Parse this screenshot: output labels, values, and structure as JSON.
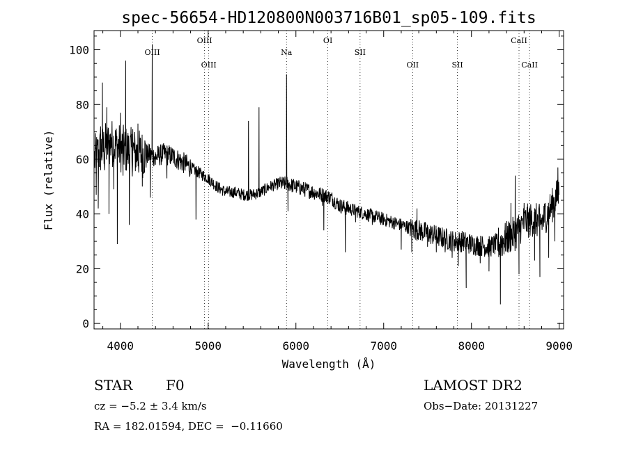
{
  "chart_data": {
    "type": "line",
    "title": "spec-56654-HD120800N003716B01_sp05-109.fits",
    "xlabel": "Wavelength (Å)",
    "ylabel": "Flux (relative)",
    "xlim": [
      3700,
      9050
    ],
    "ylim": [
      -2,
      107
    ],
    "xticks": [
      4000,
      5000,
      6000,
      7000,
      8000,
      9000
    ],
    "yticks": [
      0,
      20,
      40,
      60,
      80,
      100
    ],
    "grid": false,
    "line_color": "#000000",
    "lines": [
      {
        "label": "OIII",
        "x": 4363,
        "tier": "lower"
      },
      {
        "label": "OIII",
        "x": 4959,
        "tier": "upper"
      },
      {
        "label": "OIII",
        "x": 5007,
        "tier": "middle"
      },
      {
        "label": "Na",
        "x": 5893,
        "tier": "lower"
      },
      {
        "label": "OI",
        "x": 6364,
        "tier": "upper"
      },
      {
        "label": "SII",
        "x": 6731,
        "tier": "lower"
      },
      {
        "label": "OII",
        "x": 7330,
        "tier": "middle"
      },
      {
        "label": "SII",
        "x": 7840,
        "tier": "middle"
      },
      {
        "label": "CaII",
        "x": 8542,
        "tier": "upper"
      },
      {
        "label": "CaII",
        "x": 8662,
        "tier": "middle"
      }
    ],
    "continuum": [
      [
        3700,
        60
      ],
      [
        3800,
        64
      ],
      [
        3900,
        66
      ],
      [
        4000,
        64
      ],
      [
        4100,
        63
      ],
      [
        4200,
        62
      ],
      [
        4300,
        62
      ],
      [
        4400,
        61
      ],
      [
        4500,
        62
      ],
      [
        4600,
        61
      ],
      [
        4700,
        59
      ],
      [
        4800,
        57
      ],
      [
        4900,
        55
      ],
      [
        5000,
        53
      ],
      [
        5100,
        50
      ],
      [
        5200,
        48
      ],
      [
        5300,
        48
      ],
      [
        5400,
        47
      ],
      [
        5500,
        47
      ],
      [
        5600,
        48
      ],
      [
        5700,
        50
      ],
      [
        5800,
        51
      ],
      [
        5900,
        51
      ],
      [
        6000,
        50
      ],
      [
        6100,
        49
      ],
      [
        6200,
        48
      ],
      [
        6300,
        47
      ],
      [
        6400,
        46
      ],
      [
        6500,
        43
      ],
      [
        6600,
        42
      ],
      [
        6700,
        41
      ],
      [
        6800,
        40
      ],
      [
        6900,
        39
      ],
      [
        7000,
        38
      ],
      [
        7100,
        37
      ],
      [
        7200,
        36
      ],
      [
        7300,
        35
      ],
      [
        7400,
        34
      ],
      [
        7500,
        33
      ],
      [
        7600,
        32
      ],
      [
        7700,
        31
      ],
      [
        7800,
        30
      ],
      [
        7900,
        30
      ],
      [
        8000,
        29
      ],
      [
        8100,
        28.5
      ],
      [
        8200,
        28
      ],
      [
        8300,
        29
      ],
      [
        8400,
        31
      ],
      [
        8500,
        33
      ],
      [
        8600,
        37
      ],
      [
        8700,
        38
      ],
      [
        8800,
        37
      ],
      [
        8900,
        42
      ],
      [
        9000,
        48
      ]
    ],
    "features": [
      [
        3725,
        47
      ],
      [
        3748,
        42
      ],
      [
        3775,
        72
      ],
      [
        3795,
        88
      ],
      [
        3820,
        56
      ],
      [
        3845,
        79
      ],
      [
        3870,
        40
      ],
      [
        3895,
        68
      ],
      [
        3925,
        49
      ],
      [
        3965,
        29
      ],
      [
        4000,
        77
      ],
      [
        4030,
        54
      ],
      [
        4060,
        96
      ],
      [
        4101,
        36
      ],
      [
        4141,
        71
      ],
      [
        4200,
        73
      ],
      [
        4250,
        50
      ],
      [
        4340,
        46
      ],
      [
        4363,
        102
      ],
      [
        4400,
        58
      ],
      [
        4530,
        53
      ],
      [
        4590,
        60
      ],
      [
        4861,
        38
      ],
      [
        5460,
        74
      ],
      [
        5580,
        79
      ],
      [
        5893,
        91
      ],
      [
        5910,
        41
      ],
      [
        6300,
        43
      ],
      [
        6318,
        34
      ],
      [
        6563,
        26
      ],
      [
        6680,
        37
      ],
      [
        6870,
        36
      ],
      [
        7200,
        27
      ],
      [
        7320,
        26
      ],
      [
        7380,
        42
      ],
      [
        7500,
        28
      ],
      [
        7600,
        26
      ],
      [
        7700,
        26
      ],
      [
        7780,
        24
      ],
      [
        7850,
        21
      ],
      [
        7940,
        13
      ],
      [
        8000,
        30
      ],
      [
        8100,
        22
      ],
      [
        8200,
        19
      ],
      [
        8300,
        27
      ],
      [
        8330,
        7
      ],
      [
        8380,
        34
      ],
      [
        8450,
        44
      ],
      [
        8498,
        54
      ],
      [
        8542,
        18
      ],
      [
        8600,
        44
      ],
      [
        8662,
        42
      ],
      [
        8720,
        23
      ],
      [
        8780,
        17
      ],
      [
        8840,
        44
      ],
      [
        8880,
        24
      ],
      [
        8930,
        46
      ],
      [
        8950,
        30
      ],
      [
        8985,
        57
      ]
    ]
  },
  "info": {
    "object_class": "STAR",
    "subclass": "F0",
    "survey": "LAMOST DR2",
    "redshift": "cz = −5.2 ± 3.4 km/s",
    "obs_date": "Obs−Date: 20131227",
    "coords": "RA = 182.01594, DEC =  −0.11660"
  }
}
